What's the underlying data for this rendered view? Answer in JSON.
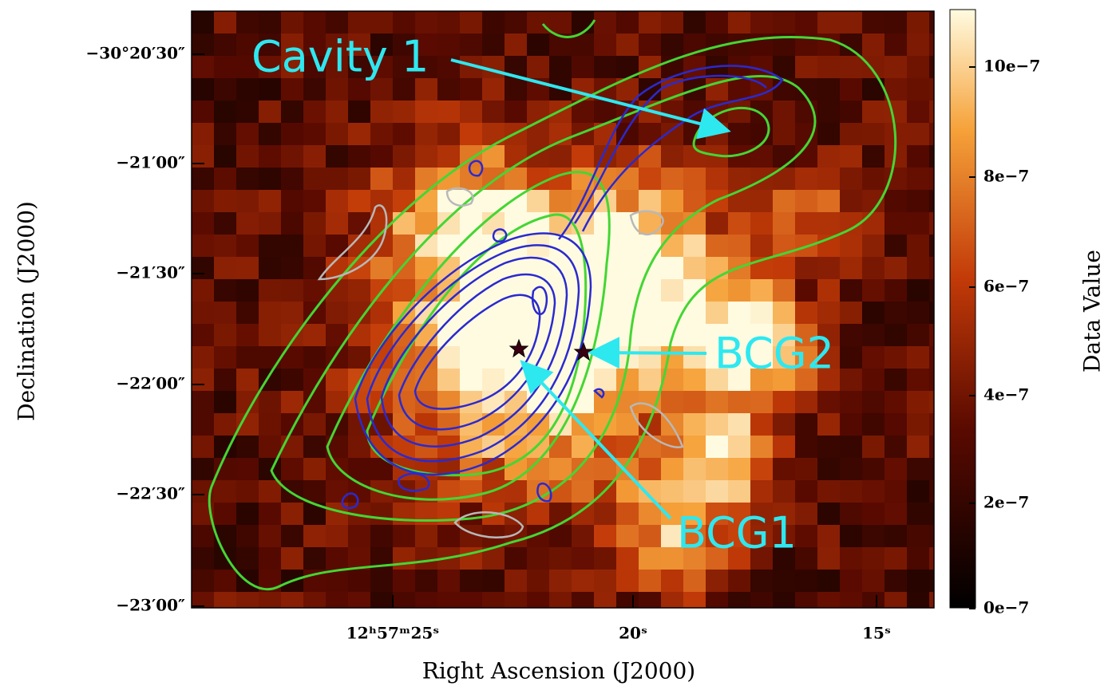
{
  "figure": {
    "y_axis": {
      "label": "Declination (J2000)",
      "ticks": [
        "−30°20′30″",
        "−21′00″",
        "−21′30″",
        "−22′00″",
        "−22′30″",
        "−23′00″"
      ]
    },
    "x_axis": {
      "label": "Right Ascension (J2000)",
      "ticks": [
        "12ʰ57ᵐ25ˢ",
        "20ˢ",
        "15ˢ"
      ]
    },
    "colorbar": {
      "label": "Data Value",
      "ticks": [
        "10e−7",
        "8e−7",
        "6e−7",
        "4e−7",
        "2e−7",
        "0e−7"
      ]
    },
    "annotations": [
      "Cavity 1",
      "BCG2",
      "BCG1"
    ]
  }
}
